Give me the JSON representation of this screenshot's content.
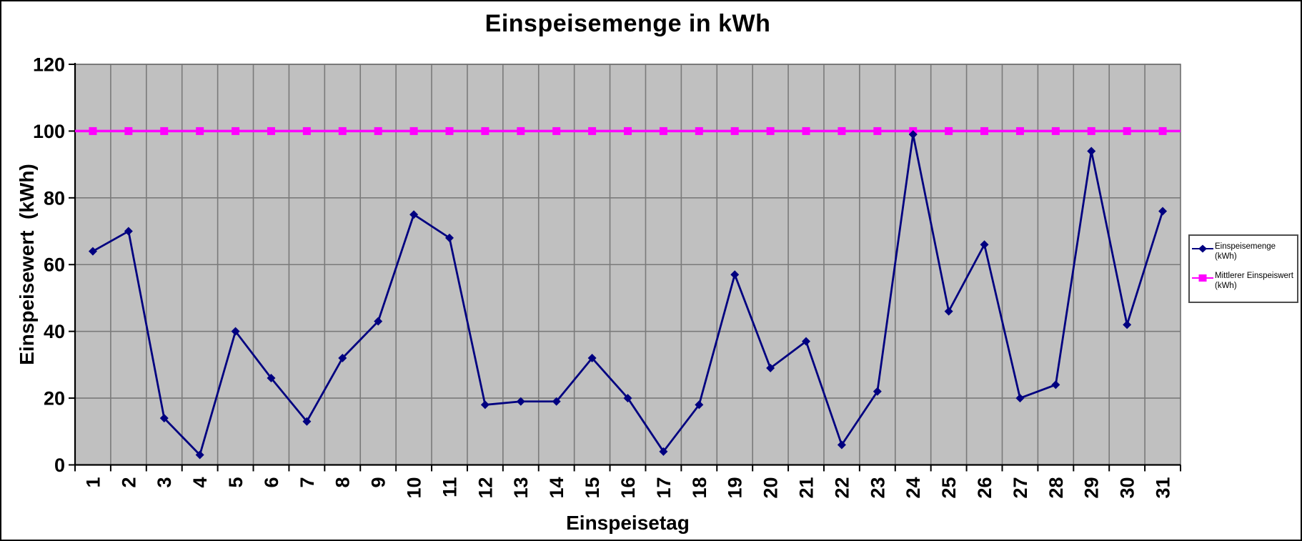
{
  "window": {
    "background": "#ffffff",
    "border_color": "#000000"
  },
  "chart_data": {
    "type": "line",
    "title": "Einspeisemenge in kWh",
    "xlabel": "Einspeisetag",
    "ylabel": "Einspeisewert  (kWh)",
    "categories": [
      "1",
      "2",
      "3",
      "4",
      "5",
      "6",
      "7",
      "8",
      "9",
      "10",
      "11",
      "12",
      "13",
      "14",
      "15",
      "16",
      "17",
      "18",
      "19",
      "20",
      "21",
      "22",
      "23",
      "24",
      "25",
      "26",
      "27",
      "28",
      "29",
      "30",
      "31"
    ],
    "series": [
      {
        "name": "Einspeisemenge (kWh)",
        "legend_lines": [
          "Einspeisemenge",
          "(kWh)"
        ],
        "color": "#000080",
        "marker": "diamond",
        "values": [
          64,
          70,
          14,
          3,
          40,
          26,
          13,
          32,
          43,
          75,
          68,
          18,
          19,
          19,
          32,
          20,
          4,
          18,
          57,
          29,
          37,
          6,
          22,
          99,
          46,
          66,
          20,
          24,
          94,
          42,
          76
        ]
      },
      {
        "name": "Mittlerer Einspeiswert (kWh)",
        "legend_lines": [
          "Mittlerer Einspeiswert",
          "(kWh)"
        ],
        "color": "#FF00FF",
        "marker": "square",
        "values": [
          100,
          100,
          100,
          100,
          100,
          100,
          100,
          100,
          100,
          100,
          100,
          100,
          100,
          100,
          100,
          100,
          100,
          100,
          100,
          100,
          100,
          100,
          100,
          100,
          100,
          100,
          100,
          100,
          100,
          100,
          100
        ]
      }
    ],
    "ylim": [
      0,
      120
    ],
    "ytick_step": 20,
    "yticks": [
      "0",
      "20",
      "40",
      "60",
      "80",
      "100",
      "120"
    ],
    "grid": true,
    "legend_position": "right",
    "plot_bg": "#C0C0C0",
    "grid_color": "#7a7a7a",
    "axis_color": "#000000",
    "text_color": "#000000"
  }
}
